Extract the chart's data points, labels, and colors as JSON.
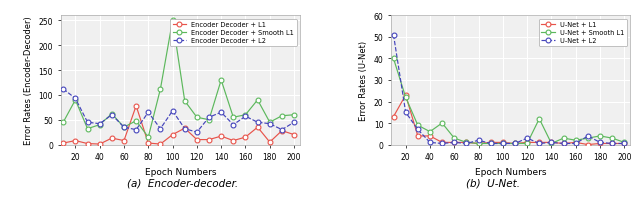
{
  "epochs": [
    10,
    20,
    30,
    40,
    50,
    60,
    70,
    80,
    90,
    100,
    110,
    120,
    130,
    140,
    150,
    160,
    170,
    180,
    190,
    200
  ],
  "enc_dec_L1": [
    3,
    8,
    2,
    1,
    13,
    8,
    78,
    3,
    1,
    20,
    33,
    10,
    10,
    17,
    8,
    15,
    35,
    5,
    28,
    20
  ],
  "enc_dec_smoothL1": [
    45,
    90,
    32,
    40,
    62,
    35,
    48,
    15,
    112,
    250,
    88,
    55,
    50,
    130,
    55,
    60,
    90,
    45,
    58,
    60
  ],
  "enc_dec_L2": [
    112,
    93,
    45,
    42,
    60,
    35,
    30,
    65,
    32,
    68,
    32,
    25,
    55,
    65,
    40,
    57,
    45,
    42,
    30,
    45
  ],
  "unet_epochs": [
    10,
    20,
    30,
    40,
    50,
    60,
    70,
    80,
    90,
    100,
    110,
    120,
    130,
    140,
    150,
    160,
    170,
    180,
    190,
    200
  ],
  "unet_L1": [
    13,
    23,
    4,
    4,
    1,
    1,
    1,
    0.5,
    1,
    1,
    0.5,
    1,
    1,
    1,
    0.5,
    1,
    0,
    0.5,
    0.5,
    0.5
  ],
  "unet_smoothL1": [
    40,
    22,
    9,
    6,
    10,
    3,
    1,
    0.5,
    0.5,
    0.5,
    0.5,
    0.5,
    12,
    0.5,
    3,
    2,
    3,
    4,
    3,
    1
  ],
  "unet_L2": [
    51,
    15,
    7,
    1,
    0.5,
    1,
    0.5,
    2,
    0.5,
    0.5,
    0.5,
    3,
    0.5,
    1,
    0.5,
    0.5,
    4,
    1,
    0.5,
    0.5
  ],
  "color_L1": "#e8534a",
  "color_smoothL1": "#5cb85c",
  "color_L2": "#4444bb",
  "bg_color": "#f0f0f0",
  "grid_color": "#ffffff",
  "enc_dec_ylabel": "Error Rates (Encoder-Decoder)",
  "unet_ylabel": "Error Rates (U-Net)",
  "xlabel": "Epoch Numbers",
  "enc_dec_title": "(a)  Encoder-decoder.",
  "unet_title": "(b)  U-Net.",
  "enc_dec_ylim": [
    0,
    260
  ],
  "unet_ylim": [
    0,
    60
  ],
  "xlim": [
    8,
    205
  ]
}
